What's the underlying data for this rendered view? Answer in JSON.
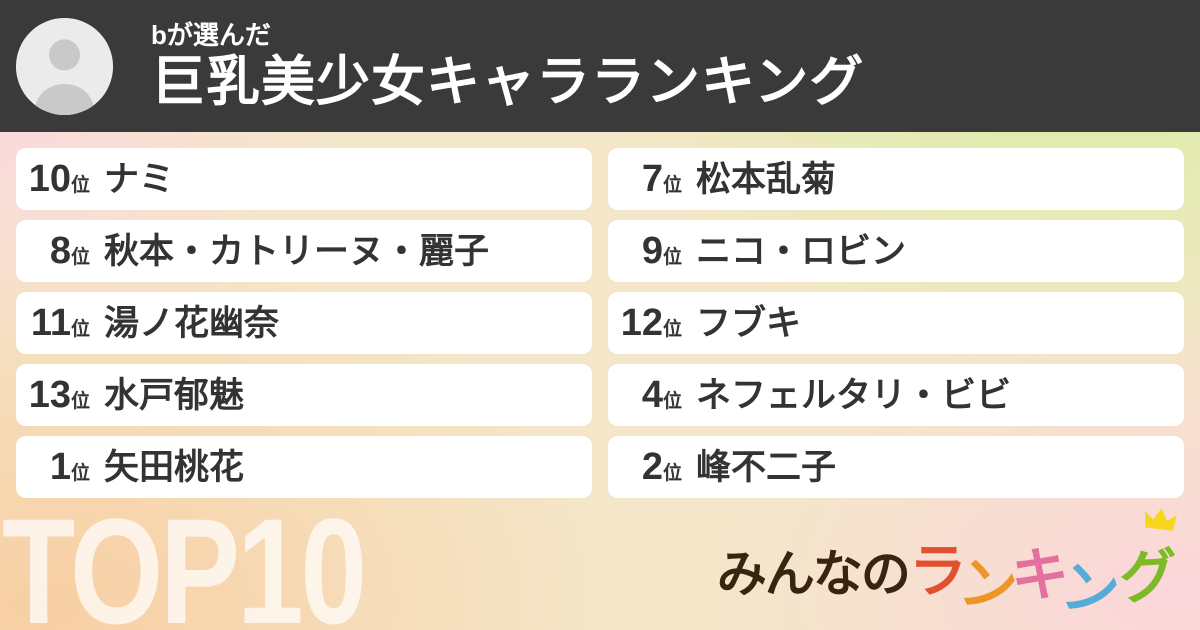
{
  "header": {
    "subtitle": "bが選んだ",
    "title": "巨乳美少女キャラランキング"
  },
  "ranking": {
    "rank_suffix": "位",
    "items": [
      {
        "rank": "10",
        "name": "ナミ"
      },
      {
        "rank": "7",
        "name": "松本乱菊"
      },
      {
        "rank": "8",
        "name": "秋本・カトリーヌ・麗子"
      },
      {
        "rank": "9",
        "name": "ニコ・ロビン"
      },
      {
        "rank": "11",
        "name": "湯ノ花幽奈"
      },
      {
        "rank": "12",
        "name": "フブキ"
      },
      {
        "rank": "13",
        "name": "水戸郁魅"
      },
      {
        "rank": "4",
        "name": "ネフェルタリ・ビビ"
      },
      {
        "rank": "1",
        "name": "矢田桃花"
      },
      {
        "rank": "2",
        "name": "峰不二子"
      }
    ]
  },
  "footer": {
    "badge": "TOP10"
  },
  "logo": {
    "prefix": "みんなの",
    "prefix_color": "#38240f",
    "colored_chars": [
      {
        "char": "ラ",
        "color": "#e2512e"
      },
      {
        "char": "ン",
        "color": "#ee9527"
      },
      {
        "char": "キ",
        "color": "#e3709f"
      },
      {
        "char": "ン",
        "color": "#55abd9"
      },
      {
        "char": "グ",
        "color": "#7eba28"
      }
    ],
    "crown_color": "#f6d71c"
  },
  "colors": {
    "header_bg": "#3a3a3a",
    "card_bg": "#ffffff",
    "card_text": "#333333",
    "bg_top_right": "#d9eda2",
    "bg_top_left": "#fbd9dc",
    "bg_bottom_left": "#f8cfa4",
    "bg_bottom_right": "#fbd6da"
  },
  "icons": {
    "avatar": "person-silhouette",
    "crown": "crown"
  }
}
